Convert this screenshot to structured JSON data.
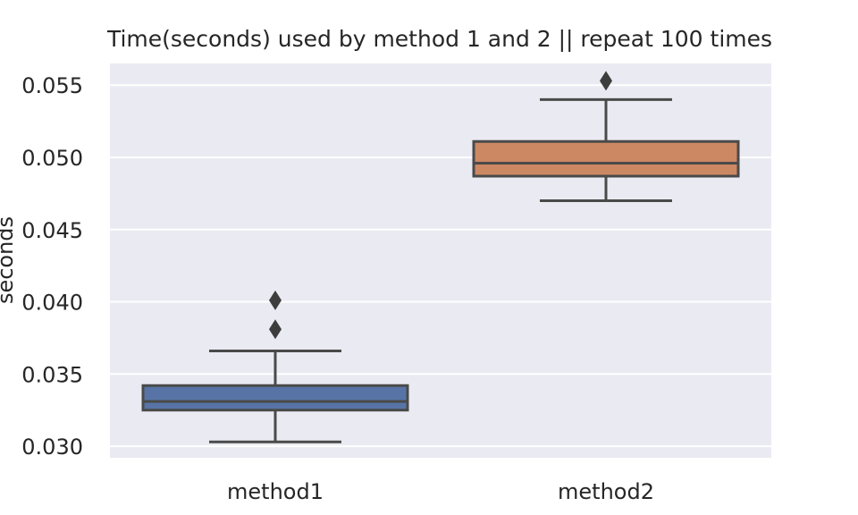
{
  "chart_data": {
    "type": "box",
    "title": "Time(seconds) used by method 1 and 2 || repeat 100 times",
    "xlabel": "",
    "ylabel": "seconds",
    "categories": [
      "method1",
      "method2"
    ],
    "ylim": [
      0.0292,
      0.0565
    ],
    "yticks": [
      0.03,
      0.035,
      0.04,
      0.045,
      0.05,
      0.055
    ],
    "ytick_labels": [
      "0.030",
      "0.035",
      "0.040",
      "0.045",
      "0.050",
      "0.055"
    ],
    "grid": true,
    "background": "#eaeaf2",
    "boxes": [
      {
        "name": "method1",
        "whisker_low": 0.0303,
        "q1": 0.0325,
        "median": 0.0331,
        "q3": 0.0342,
        "whisker_high": 0.0366,
        "outliers": [
          0.0381,
          0.0401
        ],
        "color": "#5874a6"
      },
      {
        "name": "method2",
        "whisker_low": 0.047,
        "q1": 0.0487,
        "median": 0.0496,
        "q3": 0.0511,
        "whisker_high": 0.054,
        "outliers": [
          0.0553
        ],
        "color": "#cc8863"
      }
    ]
  }
}
